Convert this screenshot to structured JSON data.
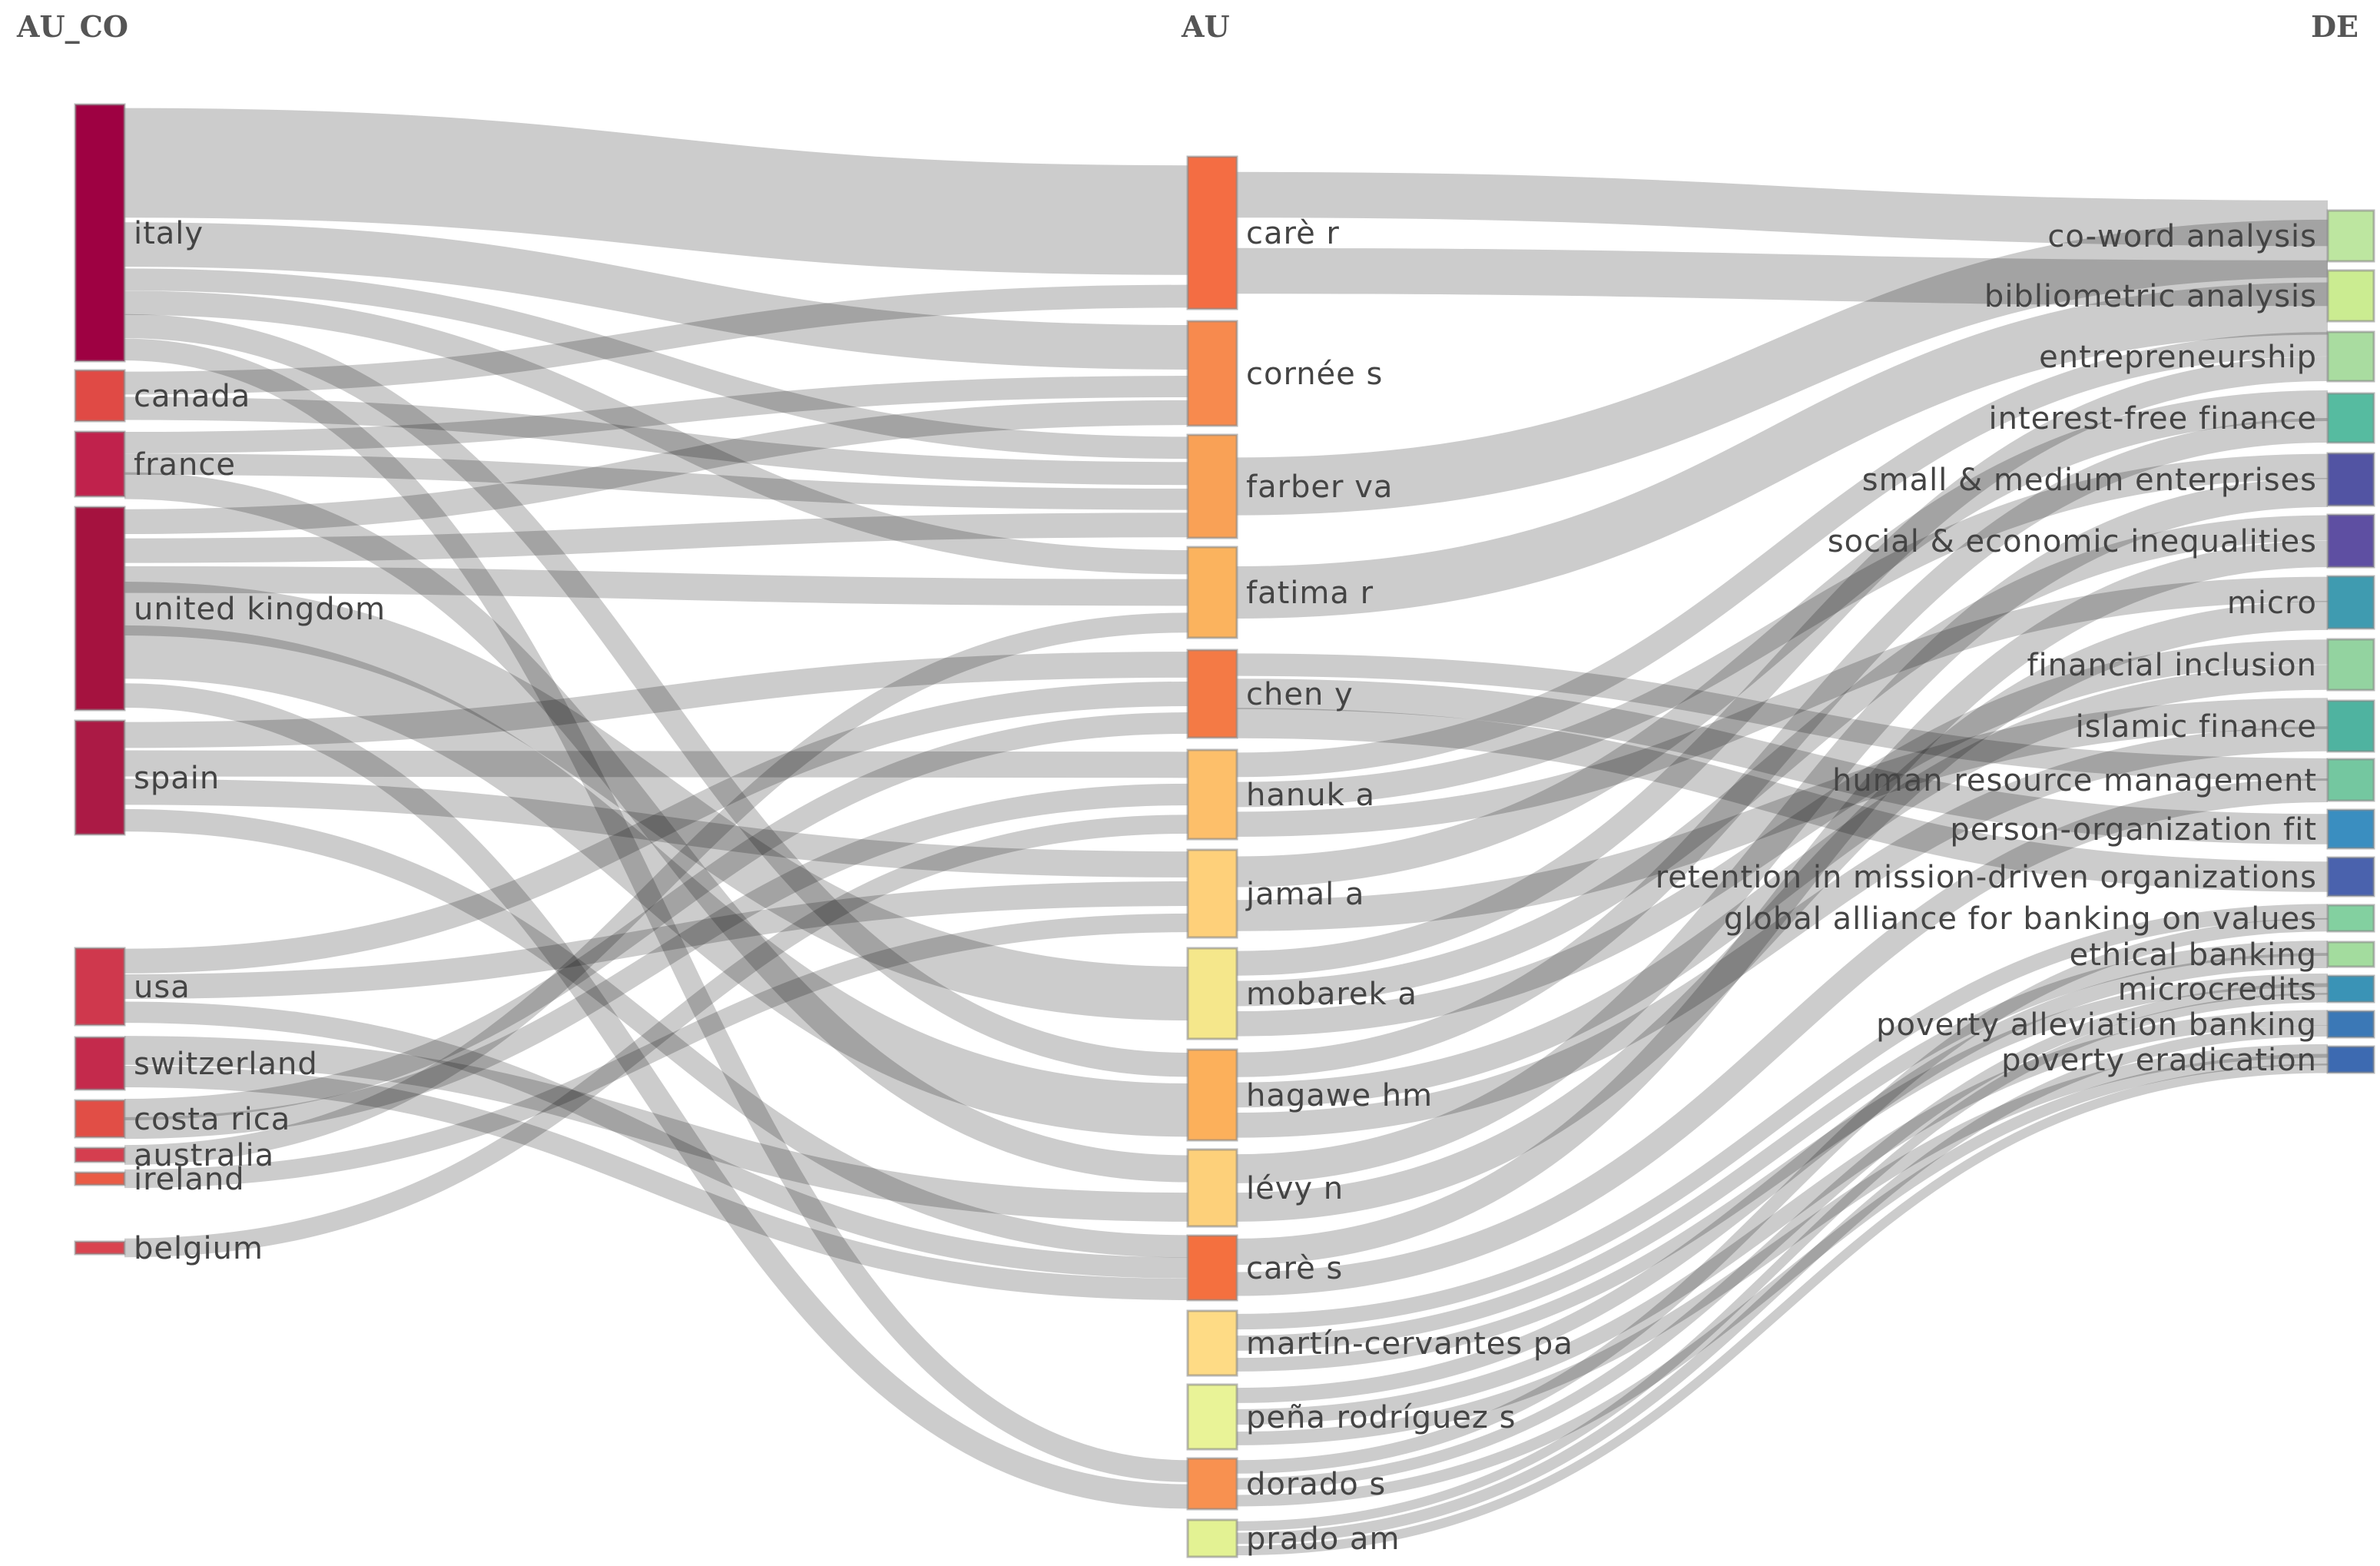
{
  "columns": {
    "left": "AU_CO",
    "middle": "AU",
    "right": "DE"
  },
  "countries": [
    {
      "id": "italy",
      "label": "italy",
      "color": "#9e0142"
    },
    {
      "id": "canada",
      "label": "canada",
      "color": "#e04a45"
    },
    {
      "id": "france",
      "label": "france",
      "color": "#c0224c"
    },
    {
      "id": "united-kingdom",
      "label": "united kingdom",
      "color": "#a5123f"
    },
    {
      "id": "spain",
      "label": "spain",
      "color": "#ab1a45"
    },
    {
      "id": "usa",
      "label": "usa",
      "color": "#cf384d"
    },
    {
      "id": "switzerland",
      "label": "switzerland",
      "color": "#c42a4c"
    },
    {
      "id": "costa-rica",
      "label": "costa rica",
      "color": "#e14e46"
    },
    {
      "id": "australia",
      "label": "australia",
      "color": "#d53e4f"
    },
    {
      "id": "ireland",
      "label": "ireland",
      "color": "#ea5b45"
    },
    {
      "id": "belgium",
      "label": "belgium",
      "color": "#d9444f"
    }
  ],
  "authors": [
    {
      "id": "care-r",
      "label": "carè r",
      "color": "#f46d43"
    },
    {
      "id": "cornee-s",
      "label": "cornée s",
      "color": "#f78a4e"
    },
    {
      "id": "farber-va",
      "label": "farber va",
      "color": "#f9a156"
    },
    {
      "id": "fatima-r",
      "label": "fatima r",
      "color": "#fbb35e"
    },
    {
      "id": "chen-y",
      "label": "chen y",
      "color": "#f47a45"
    },
    {
      "id": "hanuk-a",
      "label": "hanuk a",
      "color": "#fdbf6a"
    },
    {
      "id": "jamal-a",
      "label": "jamal a",
      "color": "#fed07a"
    },
    {
      "id": "mobarek-a",
      "label": "mobarek a",
      "color": "#f5e78b"
    },
    {
      "id": "hagawe-hm",
      "label": "hagawe hm",
      "color": "#fcb05b"
    },
    {
      "id": "levy-n",
      "label": "lévy n",
      "color": "#fdd07a"
    },
    {
      "id": "care-s",
      "label": "carè s",
      "color": "#f4703f"
    },
    {
      "id": "martin-cervantes-pa",
      "label": "martín-cervantes pa",
      "color": "#fedb85"
    },
    {
      "id": "pena-rodriguez-s",
      "label": "peña rodríguez s",
      "color": "#e9f397"
    },
    {
      "id": "dorado-s",
      "label": "dorado s",
      "color": "#f89150"
    },
    {
      "id": "prado-am",
      "label": "prado am",
      "color": "#e3f293"
    }
  ],
  "keywords": [
    {
      "id": "co-word-analysis",
      "label": "co-word analysis",
      "color": "#bde6a0"
    },
    {
      "id": "bibliometric-analysis",
      "label": "bibliometric analysis",
      "color": "#cbec91"
    },
    {
      "id": "entrepreneurship",
      "label": "entrepreneurship",
      "color": "#a9dca0"
    },
    {
      "id": "interest-free-finance",
      "label": "interest-free finance",
      "color": "#56bba0"
    },
    {
      "id": "small-medium-enterprises",
      "label": "small & medium enterprises",
      "color": "#5254a3"
    },
    {
      "id": "social-economic-inequalities",
      "label": "social & economic inequalities",
      "color": "#5e4fa2"
    },
    {
      "id": "micro",
      "label": "micro",
      "color": "#3f9bb0"
    },
    {
      "id": "financial-inclusion",
      "label": "financial inclusion",
      "color": "#93d3a0"
    },
    {
      "id": "islamic-finance",
      "label": "islamic finance",
      "color": "#4fb3a0"
    },
    {
      "id": "human-resource-management",
      "label": "human resource management",
      "color": "#74c7a0"
    },
    {
      "id": "person-organization-fit",
      "label": "person-organization fit",
      "color": "#3a8ec0"
    },
    {
      "id": "retention-mission-driven",
      "label": "retention in mission-driven organizations",
      "color": "#4a62ad"
    },
    {
      "id": "gabv",
      "label": "global alliance for banking on values",
      "color": "#83d0a0"
    },
    {
      "id": "ethical-banking",
      "label": "ethical banking",
      "color": "#a3dc9e"
    },
    {
      "id": "microcredits",
      "label": "microcredits",
      "color": "#3a93b6"
    },
    {
      "id": "poverty-alleviation-banking",
      "label": "poverty alleviation banking",
      "color": "#3b78b6"
    },
    {
      "id": "poverty-eradication",
      "label": "poverty eradication",
      "color": "#3d6ab1"
    }
  ],
  "links": [
    {
      "source": "italy",
      "target": "care-r",
      "value": 5
    },
    {
      "source": "italy",
      "target": "cornee-s",
      "value": 2
    },
    {
      "source": "italy",
      "target": "farber-va",
      "value": 1
    },
    {
      "source": "italy",
      "target": "fatima-r",
      "value": 1
    },
    {
      "source": "italy",
      "target": "hagawe-hm",
      "value": 1
    },
    {
      "source": "italy",
      "target": "dorado-s",
      "value": 1
    },
    {
      "source": "canada",
      "target": "care-r",
      "value": 1
    },
    {
      "source": "canada",
      "target": "farber-va",
      "value": 1
    },
    {
      "source": "france",
      "target": "cornee-s",
      "value": 1
    },
    {
      "source": "france",
      "target": "farber-va",
      "value": 1
    },
    {
      "source": "france",
      "target": "levy-n",
      "value": 1
    },
    {
      "source": "united-kingdom",
      "target": "cornee-s",
      "value": 1
    },
    {
      "source": "united-kingdom",
      "target": "farber-va",
      "value": 1
    },
    {
      "source": "united-kingdom",
      "target": "fatima-r",
      "value": 1
    },
    {
      "source": "united-kingdom",
      "target": "hagawe-hm",
      "value": 2
    },
    {
      "source": "united-kingdom",
      "target": "mobarek-a",
      "value": 1
    },
    {
      "source": "united-kingdom",
      "target": "dorado-s",
      "value": 1
    },
    {
      "source": "spain",
      "target": "hanuk-a",
      "value": 1
    },
    {
      "source": "spain",
      "target": "jamal-a",
      "value": 1
    },
    {
      "source": "spain",
      "target": "chen-y",
      "value": 1
    },
    {
      "source": "spain",
      "target": "care-s",
      "value": 1
    },
    {
      "source": "usa",
      "target": "chen-y",
      "value": 1
    },
    {
      "source": "usa",
      "target": "jamal-a",
      "value": 1
    },
    {
      "source": "usa",
      "target": "care-s",
      "value": 1
    },
    {
      "source": "switzerland",
      "target": "levy-n",
      "value": 1
    },
    {
      "source": "switzerland",
      "target": "care-s",
      "value": 1
    },
    {
      "source": "costa-rica",
      "target": "hanuk-a",
      "value": 1
    },
    {
      "source": "costa-rica",
      "target": "chen-y",
      "value": 1
    },
    {
      "source": "australia",
      "target": "fatima-r",
      "value": 1
    },
    {
      "source": "ireland",
      "target": "jamal-a",
      "value": 1
    },
    {
      "source": "belgium",
      "target": "hanuk-a",
      "value": 1
    },
    {
      "source": "care-r",
      "target": "co-word-analysis",
      "value": 1
    },
    {
      "source": "care-r",
      "target": "bibliometric-analysis",
      "value": 1
    },
    {
      "source": "farber-va",
      "target": "co-word-analysis",
      "value": 1
    },
    {
      "source": "fatima-r",
      "target": "bibliometric-analysis",
      "value": 1
    },
    {
      "source": "chen-y",
      "target": "human-resource-management",
      "value": 1
    },
    {
      "source": "chen-y",
      "target": "person-organization-fit",
      "value": 1
    },
    {
      "source": "chen-y",
      "target": "retention-mission-driven",
      "value": 1
    },
    {
      "source": "hanuk-a",
      "target": "entrepreneurship",
      "value": 1
    },
    {
      "source": "hanuk-a",
      "target": "small-medium-enterprises",
      "value": 1
    },
    {
      "source": "hanuk-a",
      "target": "micro",
      "value": 1
    },
    {
      "source": "jamal-a",
      "target": "interest-free-finance",
      "value": 1
    },
    {
      "source": "jamal-a",
      "target": "islamic-finance",
      "value": 1
    },
    {
      "source": "mobarek-a",
      "target": "social-economic-inequalities",
      "value": 1
    },
    {
      "source": "mobarek-a",
      "target": "financial-inclusion",
      "value": 1
    },
    {
      "source": "mobarek-a",
      "target": "entrepreneurship",
      "value": 1
    },
    {
      "source": "hagawe-hm",
      "target": "interest-free-finance",
      "value": 1
    },
    {
      "source": "hagawe-hm",
      "target": "financial-inclusion",
      "value": 1
    },
    {
      "source": "hagawe-hm",
      "target": "islamic-finance",
      "value": 1
    },
    {
      "source": "levy-n",
      "target": "small-medium-enterprises",
      "value": 1
    },
    {
      "source": "levy-n",
      "target": "micro",
      "value": 1
    },
    {
      "source": "care-s",
      "target": "human-resource-management",
      "value": 1
    },
    {
      "source": "care-s",
      "target": "social-economic-inequalities",
      "value": 1
    },
    {
      "source": "martin-cervantes-pa",
      "target": "gabv",
      "value": 1
    },
    {
      "source": "martin-cervantes-pa",
      "target": "ethical-banking",
      "value": 1
    },
    {
      "source": "martin-cervantes-pa",
      "target": "microcredits",
      "value": 1
    },
    {
      "source": "pena-rodriguez-s",
      "target": "poverty-alleviation-banking",
      "value": 1
    },
    {
      "source": "pena-rodriguez-s",
      "target": "poverty-eradication",
      "value": 1
    },
    {
      "source": "pena-rodriguez-s",
      "target": "ethical-banking",
      "value": 1
    },
    {
      "source": "dorado-s",
      "target": "microcredits",
      "value": 1
    },
    {
      "source": "dorado-s",
      "target": "poverty-eradication",
      "value": 1
    },
    {
      "source": "dorado-s",
      "target": "gabv",
      "value": 1
    },
    {
      "source": "prado-am",
      "target": "poverty-alleviation-banking",
      "value": 1
    },
    {
      "source": "prado-am",
      "target": "microcredits",
      "value": 1
    },
    {
      "source": "prado-am",
      "target": "poverty-eradication",
      "value": 1
    }
  ]
}
